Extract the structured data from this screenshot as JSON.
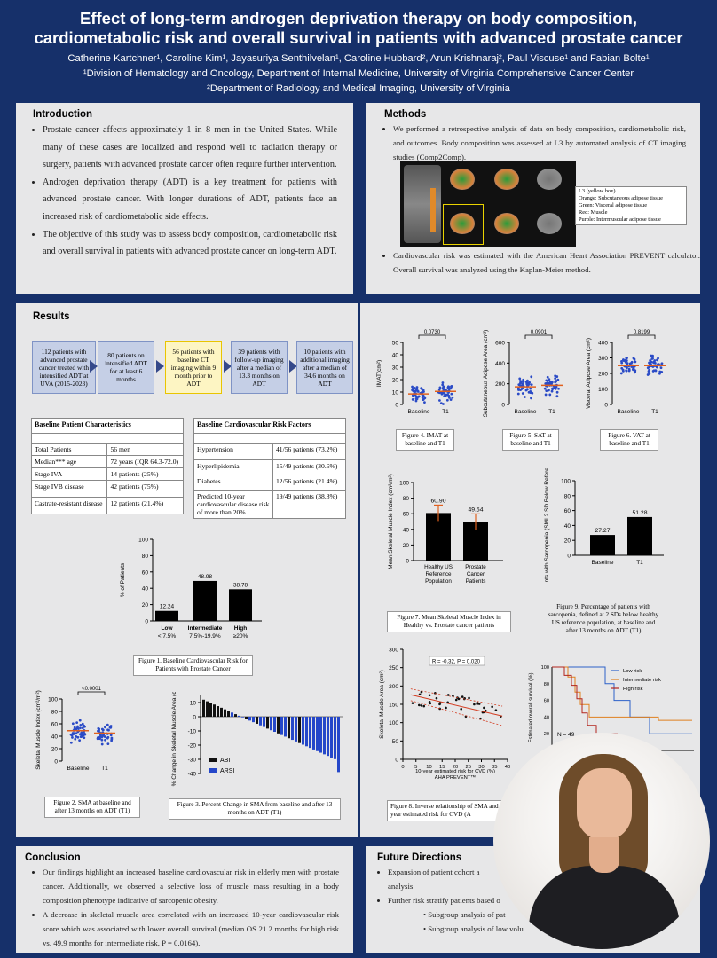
{
  "header": {
    "title_line1": "Effect of long-term androgen deprivation therapy on body composition,",
    "title_line2": "cardiometabolic risk and overall survival in patients with advanced prostate cancer",
    "authors": "Catherine Kartchner¹, Caroline Kim¹, Jayasuriya Senthilvelan¹, Caroline Hubbard², Arun Krishnaraj², Paul Viscuse¹ and Fabian Bolte¹",
    "affil1": "¹Division of Hematology and Oncology, Department of Internal Medicine, University of Virginia Comprehensive Cancer Center",
    "affil2": "²Department of Radiology and Medical Imaging, University of Virginia"
  },
  "introduction": {
    "title": "Introduction",
    "bullets": [
      "Prostate cancer affects approximately 1 in 8 men in the United States. While many of these cases are localized and respond well to radiation therapy or surgery, patients with advanced prostate cancer often require further intervention.",
      "Androgen deprivation therapy (ADT) is a key treatment for patients with advanced prostate cancer. With longer durations of ADT, patients face an increased risk of cardiometabolic side effects.",
      "The objective of this study was to assess body composition, cardiometabolic risk and overall survival in patients with advanced prostate cancer on long-term ADT."
    ]
  },
  "methods": {
    "title": "Methods",
    "bullet1": "We performed a retrospective analysis of data on body composition, cardiometabolic risk, and outcomes. Body composition was assessed at L3 by automated analysis of CT imaging studies (Comp2Comp).",
    "legend_title": "L3 (yellow box)",
    "legend_lines": [
      "Orange: Subcutaneous adipose tissue",
      "Green: Visceral adipose tissue",
      "Red: Muscle",
      "Purple: Intermuscular adipose tissue"
    ],
    "bullet2": "Cardiovascular risk was estimated with the American Heart Association PREVENT calculator. Overall survival was analyzed using the Kaplan-Meier method."
  },
  "results": {
    "title": "Results",
    "flow": [
      "112 patients with advanced prostate cancer treated with intensified ADT at UVA (2015-2023)",
      "80 patients on intensified ADT for at least 6 months",
      "56 patients with baseline CT imaging within 9 month prior to ADT",
      "39 patients with follow-up imaging after a median of 13.3 months on ADT",
      "10 patients with additional imaging after a median of 34.6 months on ADT"
    ],
    "baseline_table": {
      "header": "Baseline Patient Characteristics",
      "rows": [
        [
          "Total Patients",
          "56 men"
        ],
        [
          "Median*** age",
          "72 years (IQR 64.3-72.0)"
        ],
        [
          "Stage IVA",
          "14 patients (25%)"
        ],
        [
          "Stage IVB disease",
          "42 patients (75%)"
        ],
        [
          "Castrate-resistant disease",
          "12 patients (21.4%)"
        ]
      ]
    },
    "cv_table": {
      "header": "Baseline Cardiovascular Risk Factors",
      "rows": [
        [
          "Hypertension",
          "41/56 patients (73.2%)"
        ],
        [
          "Hyperlipidemia",
          "15/49 patients (30.6%)"
        ],
        [
          "Diabetes",
          "12/56 patients (21.4%)"
        ],
        [
          "Predicted 10-year cardiovascular disease risk of more than 20%",
          "19/49 patients (38.8%)"
        ]
      ]
    },
    "captions": {
      "fig1": "Figure 1. Baseline Cardiovascular Risk for Patients with Prostate Cancer",
      "fig2": "Figure 2. SMA at baseline and after 13 months on ADT (T1)",
      "fig3": "Figure 3. Percent Change in SMA from baseline and after 13 months on ADT (T1)",
      "fig4": "Figure 4. IMAT at baseline and T1",
      "fig5": "Figure 5. SAT at baseline and T1",
      "fig6": "Figure 6. VAT at baseline and T1",
      "fig7": "Figure 7. Mean Skeletal Muscle Index in Healthy vs. Prostate cancer patients",
      "fig8": "Figure 8. Inverse relationship of SMA and 10 year estimated risk for CVD (A",
      "fig9": "Figure 9. Percentage of patients with sarcopenia, defined at 2 SDs below healthy US reference population, at baseline and after 13 months on ADT (T1)"
    },
    "fig1_ylabel": "% of Patients",
    "fig2_ylabel": "Skeletal Muscle Index (cm²/m²)",
    "fig2_p": "<0.0001",
    "fig3_ylabel": "% Change in Skeletal Muscle Area (cm²)",
    "fig3_legend": [
      "ABI",
      "ARSI"
    ],
    "fig4_ylabel": "IMAT(cm²)",
    "fig4_p": "0.0730",
    "fig5_ylabel": "Subcutaneous Adipose Area (cm²)",
    "fig5_p": "0.0901",
    "fig6_ylabel": "Visceral Adipose Area (cm²)",
    "fig6_p": "0.8199",
    "fig7_ylabel": "Mean Skeletal Muscle Index (cm²/m²)",
    "fig8_stat": "R = -0.32, P = 0.020",
    "fig8_ylabel": "Skeletal Muscle Area (cm²)",
    "fig8_xlabel1": "10-year estimated risk for CVD (%)",
    "fig8_xlabel2": "AHA PREVENT™",
    "fig9_ylabel": "% of Patients with Sarcopenia (SMI 2 SD Below Reference Population)",
    "km_ylabel": "Estimated overall survival (%)",
    "km_n": "N = 49",
    "km_legend": [
      "Low risk",
      "Intermediate risk",
      "High risk"
    ]
  },
  "chart_data": [
    {
      "type": "bar",
      "categories": [
        "Low < 7.5%",
        "Intermediate 7.5%-19.9%",
        "High ≥20%"
      ],
      "values": [
        12.24,
        48.98,
        38.78
      ],
      "ylabel": "% of Patients",
      "ylim": [
        0,
        100
      ]
    },
    {
      "type": "bar",
      "categories": [
        "Healthy US Reference Population",
        "Prostate Cancer Patients"
      ],
      "values": [
        60.9,
        49.54
      ],
      "ylabel": "Mean Skeletal Muscle Index (cm²/m²)",
      "ylim": [
        0,
        100
      ]
    },
    {
      "type": "bar",
      "categories": [
        "Baseline",
        "T1"
      ],
      "values": [
        27.27,
        51.28
      ],
      "ylabel": "% of Patients with Sarcopenia (SMI 2 SD Below Reference Population)",
      "ylim": [
        0,
        100
      ]
    },
    {
      "type": "scatter",
      "categories": [
        "Baseline",
        "T1"
      ],
      "ylabel": "Skeletal Muscle Index (cm²/m²)",
      "ylim": [
        0,
        100
      ],
      "annotation": "<0.0001"
    },
    {
      "type": "bar",
      "ylabel": "% Change in Skeletal Muscle Area (cm²)",
      "ylim": [
        -40,
        15
      ],
      "series": [
        {
          "name": "ABI"
        },
        {
          "name": "ARSI"
        }
      ]
    },
    {
      "type": "scatter",
      "categories": [
        "Baseline",
        "T1"
      ],
      "ylabel": "IMAT(cm²)",
      "ylim": [
        0,
        50
      ],
      "annotation": "0.0730"
    },
    {
      "type": "scatter",
      "categories": [
        "Baseline",
        "T1"
      ],
      "ylabel": "Subcutaneous Adipose Area (cm²)",
      "ylim": [
        0,
        600
      ],
      "annotation": "0.0901"
    },
    {
      "type": "scatter",
      "categories": [
        "Baseline",
        "T1"
      ],
      "ylabel": "Visceral Adipose Area (cm²)",
      "ylim": [
        0,
        400
      ],
      "annotation": "0.8199"
    },
    {
      "type": "scatter",
      "xlabel": "10-year estimated risk for CVD (%) AHA PREVENT™",
      "ylabel": "Skeletal Muscle Area (cm²)",
      "xlim": [
        0,
        40
      ],
      "ylim": [
        0,
        300
      ],
      "annotation": "R = -0.32, P = 0.020"
    },
    {
      "type": "line",
      "ylabel": "Estimated overall survival (%)",
      "series": [
        {
          "name": "Low risk"
        },
        {
          "name": "Intermediate risk"
        },
        {
          "name": "High risk"
        }
      ],
      "annotation": "N = 49"
    }
  ],
  "conclusion": {
    "title": "Conclusion",
    "bullets": [
      "Our findings highlight an increased baseline cardiovascular risk in elderly men with prostate cancer. Additionally, we observed a selective loss of muscle mass resulting in a body composition phenotype indicative of sarcopenic obesity.",
      "A decrease in skeletal muscle area correlated with an increased 10-year cardiovascular risk score which was associated with lower overall survival (median OS 21.2 months for high risk vs. 49.9 months for intermediate risk, P = 0.0164)."
    ]
  },
  "future": {
    "title": "Future Directions",
    "bullet1a": "Expansion of patient cohort a",
    "bullet1b": "analysis.",
    "bullet2": "Further risk stratify patients based o",
    "sub1": "Subgroup analysis of pat",
    "sub1_tail": "ase",
    "sub2": "Subgroup analysis of low volu"
  },
  "colors": {
    "background": "#16306a",
    "panel": "#e7e7e8",
    "flow_box": "#c5cfe6",
    "highlight_box": "#fdf5c3",
    "abi": "#111111",
    "arsi": "#2547c9",
    "mean_line": "#e0601e"
  }
}
